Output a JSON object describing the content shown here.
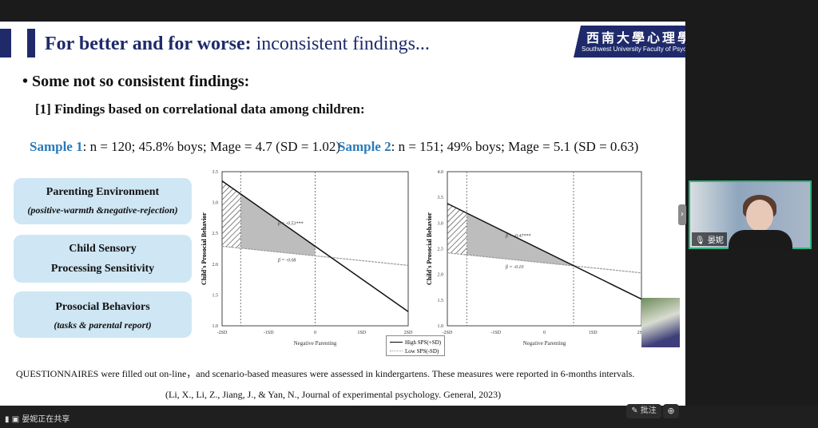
{
  "slide": {
    "title_bold": "For better and for worse:",
    "title_rest": " inconsistent findings...",
    "logo_cn": "西南大學心理學部",
    "logo_en": "Southwest University Faculty of Psychology",
    "bullet": "•  Some not so consistent findings:",
    "subheading": "[1] Findings based on correlational data among children:",
    "sample1_label": "Sample 1",
    "sample1_text": ": n = 120; 45.8% boys; Mage = 4.7 (SD = 1.02)",
    "sample2_label": "Sample 2",
    "sample2_text": ": n = 151; 49% boys; Mage = 5.1 (SD = 0.63)",
    "boxes": [
      {
        "heading": "Parenting Environment",
        "detail": "(positive-warmth &negative-rejection)"
      },
      {
        "heading": "Child Sensory",
        "heading2": "Processing Sensitivity"
      },
      {
        "heading": "Prosocial Behaviors",
        "detail": "(tasks & parental report)"
      }
    ],
    "legend": {
      "high": "High SPS(+SD)",
      "low": "Low SPS(-SD)"
    },
    "note": "QUESTIONNAIRES were filled out on-line，and scenario-based measures were assessed in kindergartens. These measures were reported in 6-months intervals.",
    "citation": "(Li, X., Li, Z., Jiang, J., & Yan, N., Journal of experimental psychology. General, 2023)"
  },
  "chart_data": [
    {
      "type": "line",
      "xlabel": "Negative Parenting",
      "ylabel": "Child's Prosocial Behavior",
      "x_ticks": [
        "-2SD",
        "-1SD",
        "0",
        "1SD",
        "2SD"
      ],
      "x": [
        -2,
        2
      ],
      "ylim": [
        1.0,
        3.5
      ],
      "y_ticks": [
        "1.0",
        "1.5",
        "2.0",
        "2.5",
        "3.0",
        "3.5"
      ],
      "series": [
        {
          "name": "High SPS(+SD)",
          "values": [
            3.35,
            1.23
          ],
          "annotation": "β = -0.53***"
        },
        {
          "name": "Low SPS(-SD)",
          "values": [
            2.29,
            1.98
          ],
          "annotation": "β = -0.08"
        }
      ],
      "region_bounds": [
        -1.6,
        0
      ]
    },
    {
      "type": "line",
      "xlabel": "Negative Parenting",
      "ylabel": "Child's Prosocial Behavior",
      "x_ticks": [
        "-2SD",
        "-1SD",
        "0",
        "1SD",
        "2SD"
      ],
      "x": [
        -2,
        2
      ],
      "ylim": [
        1.0,
        4.0
      ],
      "y_ticks": [
        "1.0",
        "1.5",
        "2.0",
        "2.5",
        "3.0",
        "3.5",
        "4.0"
      ],
      "series": [
        {
          "name": "High SPS(+SD)",
          "values": [
            3.38,
            1.52
          ],
          "annotation": "β = -0.47***"
        },
        {
          "name": "Low SPS(-SD)",
          "values": [
            2.42,
            2.03
          ],
          "annotation": "β = -0.10"
        }
      ],
      "region_bounds": [
        -1.6,
        0.6
      ]
    }
  ],
  "video": {
    "name": "晏妮"
  },
  "bottom": {
    "sharing": "晏妮正在共享",
    "annotate": "批注"
  },
  "colors": {
    "navy": "#1f2a6b",
    "accent_blue": "#2a7ab8",
    "box": "#cfe6f4",
    "video_border": "#2fb27a"
  }
}
